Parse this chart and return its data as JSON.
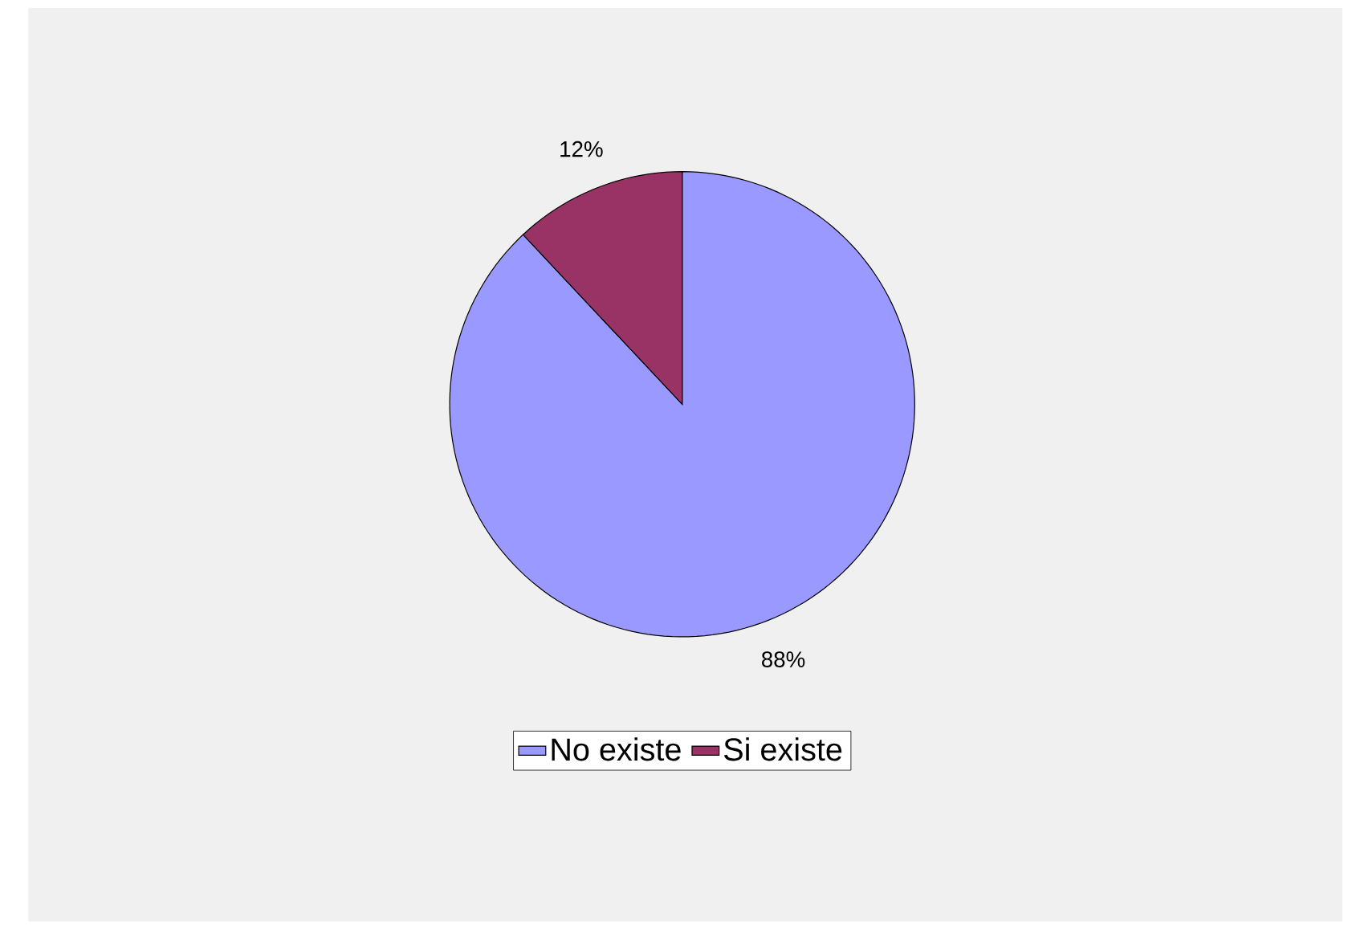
{
  "chart_data": {
    "type": "pie",
    "categories": [
      "No existe",
      "Si existe"
    ],
    "values": [
      88,
      12
    ],
    "colors": [
      "#9999ff",
      "#993366"
    ],
    "value_labels": [
      "88%",
      "12%"
    ],
    "legend": "bottom"
  }
}
